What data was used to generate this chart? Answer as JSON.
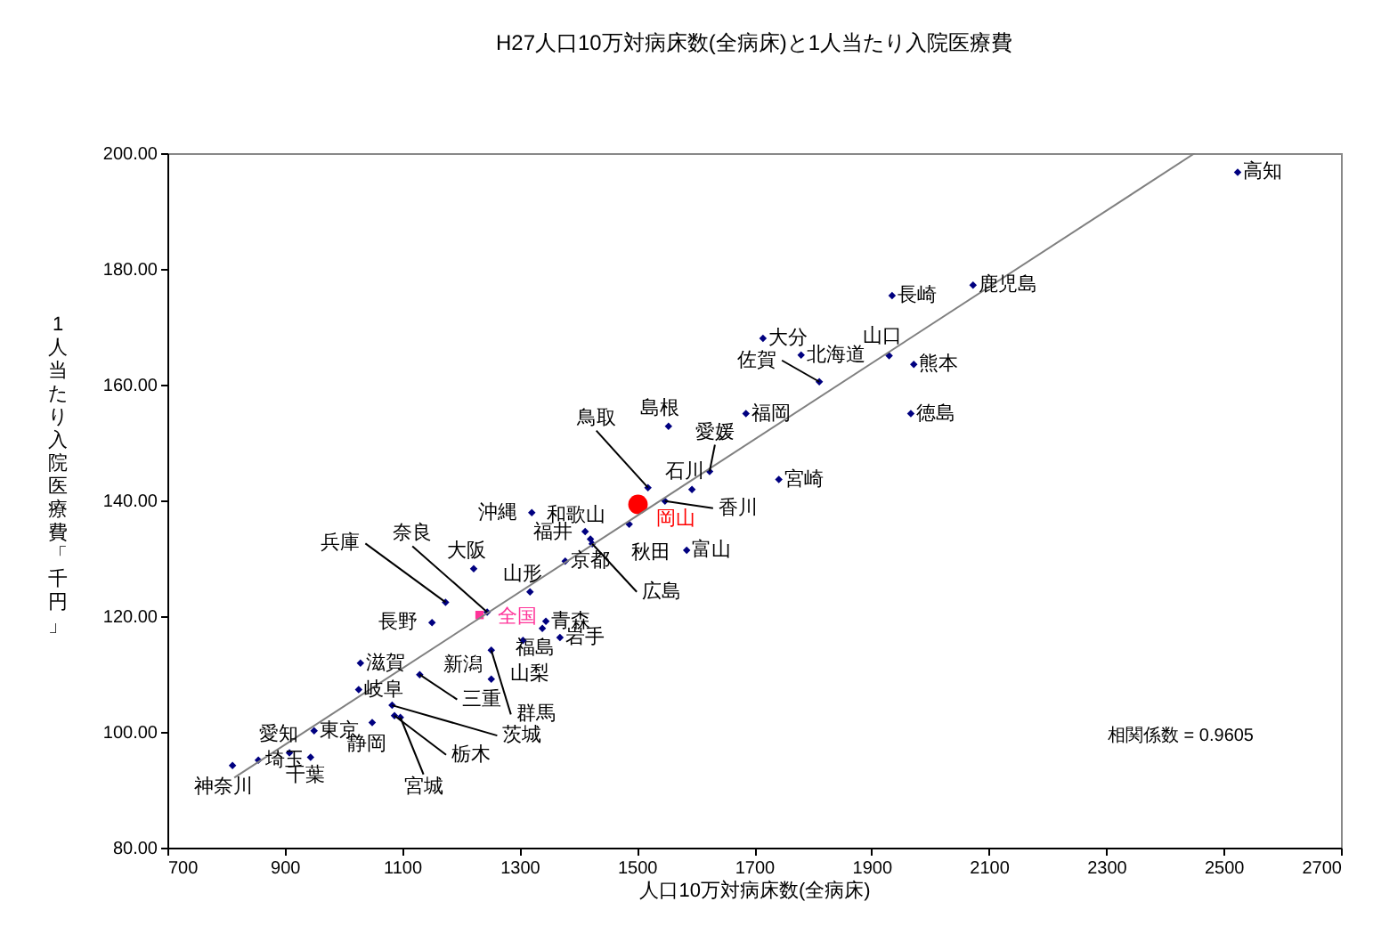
{
  "chart_data": {
    "type": "scatter",
    "title": "H27人口10万対病床数(全病床)と1人当たり入院医療費",
    "xlabel": "人口10万対病床数(全病床)",
    "ylabel": "1人当たり入院医療費「千円」",
    "xlim": [
      700,
      2700
    ],
    "xticks": [
      700,
      900,
      1100,
      1300,
      1500,
      1700,
      1900,
      2100,
      2300,
      2500,
      2700
    ],
    "ylim": [
      80,
      200
    ],
    "yticks": [
      {
        "value": 80,
        "label": "80.00"
      },
      {
        "value": 100,
        "label": "100.00"
      },
      {
        "value": 120,
        "label": "120.00"
      },
      {
        "value": 140,
        "label": "140.00"
      },
      {
        "value": 160,
        "label": "160.00"
      },
      {
        "value": 180,
        "label": "180.00"
      },
      {
        "value": 200,
        "label": "200.00"
      }
    ],
    "grid": false,
    "series": [
      {
        "color": "#000080",
        "marker": "diamond",
        "x": [
          811,
          855,
          908,
          944,
          950,
          1049,
          1026,
          1029,
          1083,
          1087,
          1097,
          1130,
          1252,
          1151,
          1174,
          1245,
          1222,
          1318,
          1252,
          1345,
          1339,
          1306,
          1369,
          1321,
          1412,
          1421,
          1424,
          1378,
          1487,
          1519,
          1548,
          1585,
          1594,
          1624,
          1554,
          1686,
          1742,
          1715,
          1780,
          1811,
          1930,
          1972,
          1967,
          1935,
          2073,
          2524
        ],
        "values": [
          94.2,
          95.1,
          96.4,
          95.6,
          100.2,
          101.6,
          107.3,
          111.9,
          104.6,
          102.8,
          102.5,
          109.9,
          109.1,
          118.9,
          122.4,
          120.7,
          128.2,
          124.2,
          114.1,
          119.1,
          117.9,
          115.8,
          116.3,
          137.9,
          134.6,
          133.3,
          132.5,
          129.5,
          135.9,
          142.2,
          139.9,
          131.4,
          141.9,
          145.0,
          152.8,
          155.0,
          143.6,
          168.0,
          165.1,
          160.5,
          165.0,
          163.5,
          155.0,
          175.4,
          177.2,
          196.7
        ]
      },
      {
        "name": "全国",
        "color": "#ff3399",
        "marker": "square",
        "x": [
          1232
        ],
        "values": [
          120.2
        ]
      },
      {
        "name": "岡山",
        "color": "#ff0000",
        "marker": "circle",
        "x": [
          1502
        ],
        "values": [
          139.3
        ]
      },
      {
        "type": "line",
        "color": "#808080",
        "x": [
          814,
          2451
        ],
        "values": [
          92.1,
          200
        ]
      }
    ],
    "annotations": [
      {
        "text": "神奈川",
        "x": 811,
        "y": 94.2
      },
      {
        "text": "埼玉",
        "x": 855,
        "y": 95.1
      },
      {
        "text": "愛知",
        "x": 908,
        "y": 96.4
      },
      {
        "text": "千葉",
        "x": 944,
        "y": 95.6
      },
      {
        "text": "東京",
        "x": 950,
        "y": 100.2
      },
      {
        "text": "静岡",
        "x": 1049,
        "y": 101.6
      },
      {
        "text": "岐阜",
        "x": 1026,
        "y": 107.3
      },
      {
        "text": "滋賀",
        "x": 1029,
        "y": 111.9
      },
      {
        "text": "茨城",
        "x": 1083,
        "y": 104.6
      },
      {
        "text": "栃木",
        "x": 1087,
        "y": 102.8
      },
      {
        "text": "宮城",
        "x": 1097,
        "y": 102.5
      },
      {
        "text": "三重",
        "x": 1130,
        "y": 109.9
      },
      {
        "text": "新潟",
        "x": 1252,
        "y": 109.1
      },
      {
        "text": "長野",
        "x": 1151,
        "y": 118.9
      },
      {
        "text": "兵庫",
        "x": 1174,
        "y": 122.4
      },
      {
        "text": "奈良",
        "x": 1245,
        "y": 120.7
      },
      {
        "text": "大阪",
        "x": 1222,
        "y": 128.2
      },
      {
        "text": "山形",
        "x": 1318,
        "y": 124.2
      },
      {
        "text": "群馬",
        "x": 1252,
        "y": 114.1
      },
      {
        "text": "青森",
        "x": 1345,
        "y": 119.1
      },
      {
        "text": "福島",
        "x": 1339,
        "y": 117.9
      },
      {
        "text": "山梨",
        "x": 1306,
        "y": 115.8
      },
      {
        "text": "岩手",
        "x": 1369,
        "y": 116.3
      },
      {
        "text": "沖縄",
        "x": 1321,
        "y": 137.9
      },
      {
        "text": "和歌山",
        "x": 1412,
        "y": 134.6
      },
      {
        "text": "福井",
        "x": 1421,
        "y": 133.3
      },
      {
        "text": "広島",
        "x": 1424,
        "y": 132.5
      },
      {
        "text": "京都",
        "x": 1378,
        "y": 129.5
      },
      {
        "text": "秋田",
        "x": 1487,
        "y": 135.9
      },
      {
        "text": "鳥取",
        "x": 1519,
        "y": 142.2
      },
      {
        "text": "香川",
        "x": 1548,
        "y": 139.9
      },
      {
        "text": "富山",
        "x": 1585,
        "y": 131.4
      },
      {
        "text": "石川",
        "x": 1594,
        "y": 141.9
      },
      {
        "text": "愛媛",
        "x": 1624,
        "y": 145.0
      },
      {
        "text": "島根",
        "x": 1554,
        "y": 152.8
      },
      {
        "text": "福岡",
        "x": 1686,
        "y": 155.0
      },
      {
        "text": "宮崎",
        "x": 1742,
        "y": 143.6
      },
      {
        "text": "大分",
        "x": 1715,
        "y": 168.0
      },
      {
        "text": "北海道",
        "x": 1780,
        "y": 165.1
      },
      {
        "text": "佐賀",
        "x": 1811,
        "y": 160.5
      },
      {
        "text": "山口",
        "x": 1930,
        "y": 165.0
      },
      {
        "text": "熊本",
        "x": 1972,
        "y": 163.5
      },
      {
        "text": "徳島",
        "x": 1967,
        "y": 155.0
      },
      {
        "text": "長崎",
        "x": 1935,
        "y": 175.4
      },
      {
        "text": "鹿児島",
        "x": 2073,
        "y": 177.2
      },
      {
        "text": "高知",
        "x": 2524,
        "y": 196.7
      },
      "相関係数 = 0.9605"
    ]
  }
}
